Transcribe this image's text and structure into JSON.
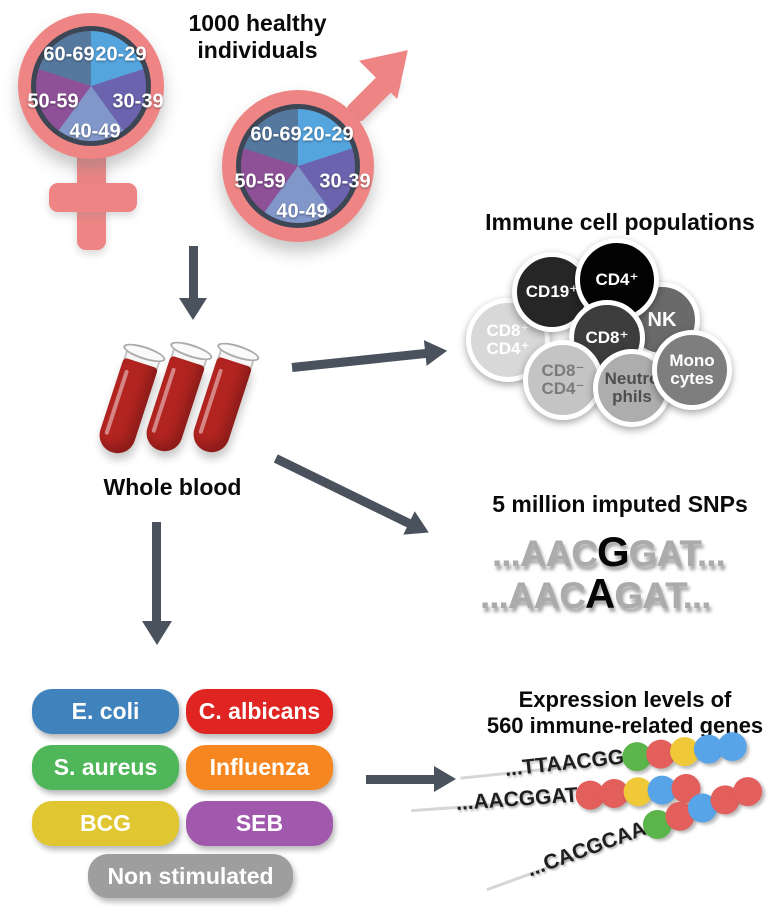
{
  "title": {
    "line1": "1000 healthy",
    "line2": "individuals"
  },
  "cohort": {
    "age_groups": [
      "20-29",
      "30-39",
      "40-49",
      "50-59",
      "60-69"
    ],
    "pie_slice_colors": {
      "20-29": "#54A4DE",
      "30-39": "#6C63AE",
      "40-49": "#8197CA",
      "50-59": "#8E5198",
      "60-69": "#55789F"
    },
    "symbol_color": "#EE8484",
    "pie_ring_color": "#3D4654"
  },
  "whole_blood": {
    "label": "Whole blood",
    "tube_count": 3,
    "blood_color": "#B22420"
  },
  "arrow_color": "#4A525E",
  "immune_cells": {
    "title": "Immune cell populations",
    "cells": [
      {
        "label": "CD8⁺ CD4⁺",
        "bg": "#D8D8D8",
        "fg": "#FFFFFF"
      },
      {
        "label": "CD19⁺",
        "bg": "#262626",
        "fg": "#FFFFFF"
      },
      {
        "label": "NK",
        "bg": "#6A6A6A",
        "fg": "#FFFFFF"
      },
      {
        "label": "CD4⁺",
        "bg": "#030303",
        "fg": "#FFFFFF"
      },
      {
        "label": "CD8⁺",
        "bg": "#3D3D3D",
        "fg": "#FFFFFF"
      },
      {
        "label": "CD8⁻ CD4⁻",
        "bg": "#C4C4C4",
        "fg": "#7B7B7B"
      },
      {
        "label": "Neutro phils",
        "bg": "#ADADAD",
        "fg": "#4E4E4E"
      },
      {
        "label": "Mono cytes",
        "bg": "#7E7E7E",
        "fg": "#FFFFFF"
      }
    ]
  },
  "snps": {
    "title": "5 million imputed SNPs",
    "sequences": [
      {
        "pre": "...AAC",
        "variant": "G",
        "post": "GAT..."
      },
      {
        "pre": "...AAC",
        "variant": "A",
        "post": "GAT..."
      }
    ]
  },
  "stimulations": {
    "items": [
      {
        "label": "E. coli",
        "color": "#3F82BC"
      },
      {
        "label": "C. albicans",
        "color": "#DF2422"
      },
      {
        "label": "S. aureus",
        "color": "#4FB75A"
      },
      {
        "label": "Influenza",
        "color": "#F6861F"
      },
      {
        "label": "BCG",
        "color": "#E0C630"
      },
      {
        "label": "SEB",
        "color": "#A159AD"
      },
      {
        "label": "Non stimulated",
        "color": "#9E9E9E"
      }
    ]
  },
  "expression": {
    "title_line1": "Expression levels of",
    "title_line2": "560 immune-related genes",
    "dot_colors": {
      "green": "#5CB54B",
      "red": "#E25F5C",
      "yellow": "#EFC937",
      "blue": "#57A5E8"
    },
    "rows": [
      {
        "seq": "...TTAACGG",
        "dots": [
          "green",
          "red",
          "yellow",
          "blue",
          "blue"
        ]
      },
      {
        "seq": "...AACGGAT",
        "dots": [
          "red",
          "red",
          "yellow",
          "blue",
          "red"
        ]
      },
      {
        "seq": "...CACGCAA",
        "dots": [
          "green",
          "red",
          "blue",
          "red",
          "red"
        ]
      }
    ]
  }
}
